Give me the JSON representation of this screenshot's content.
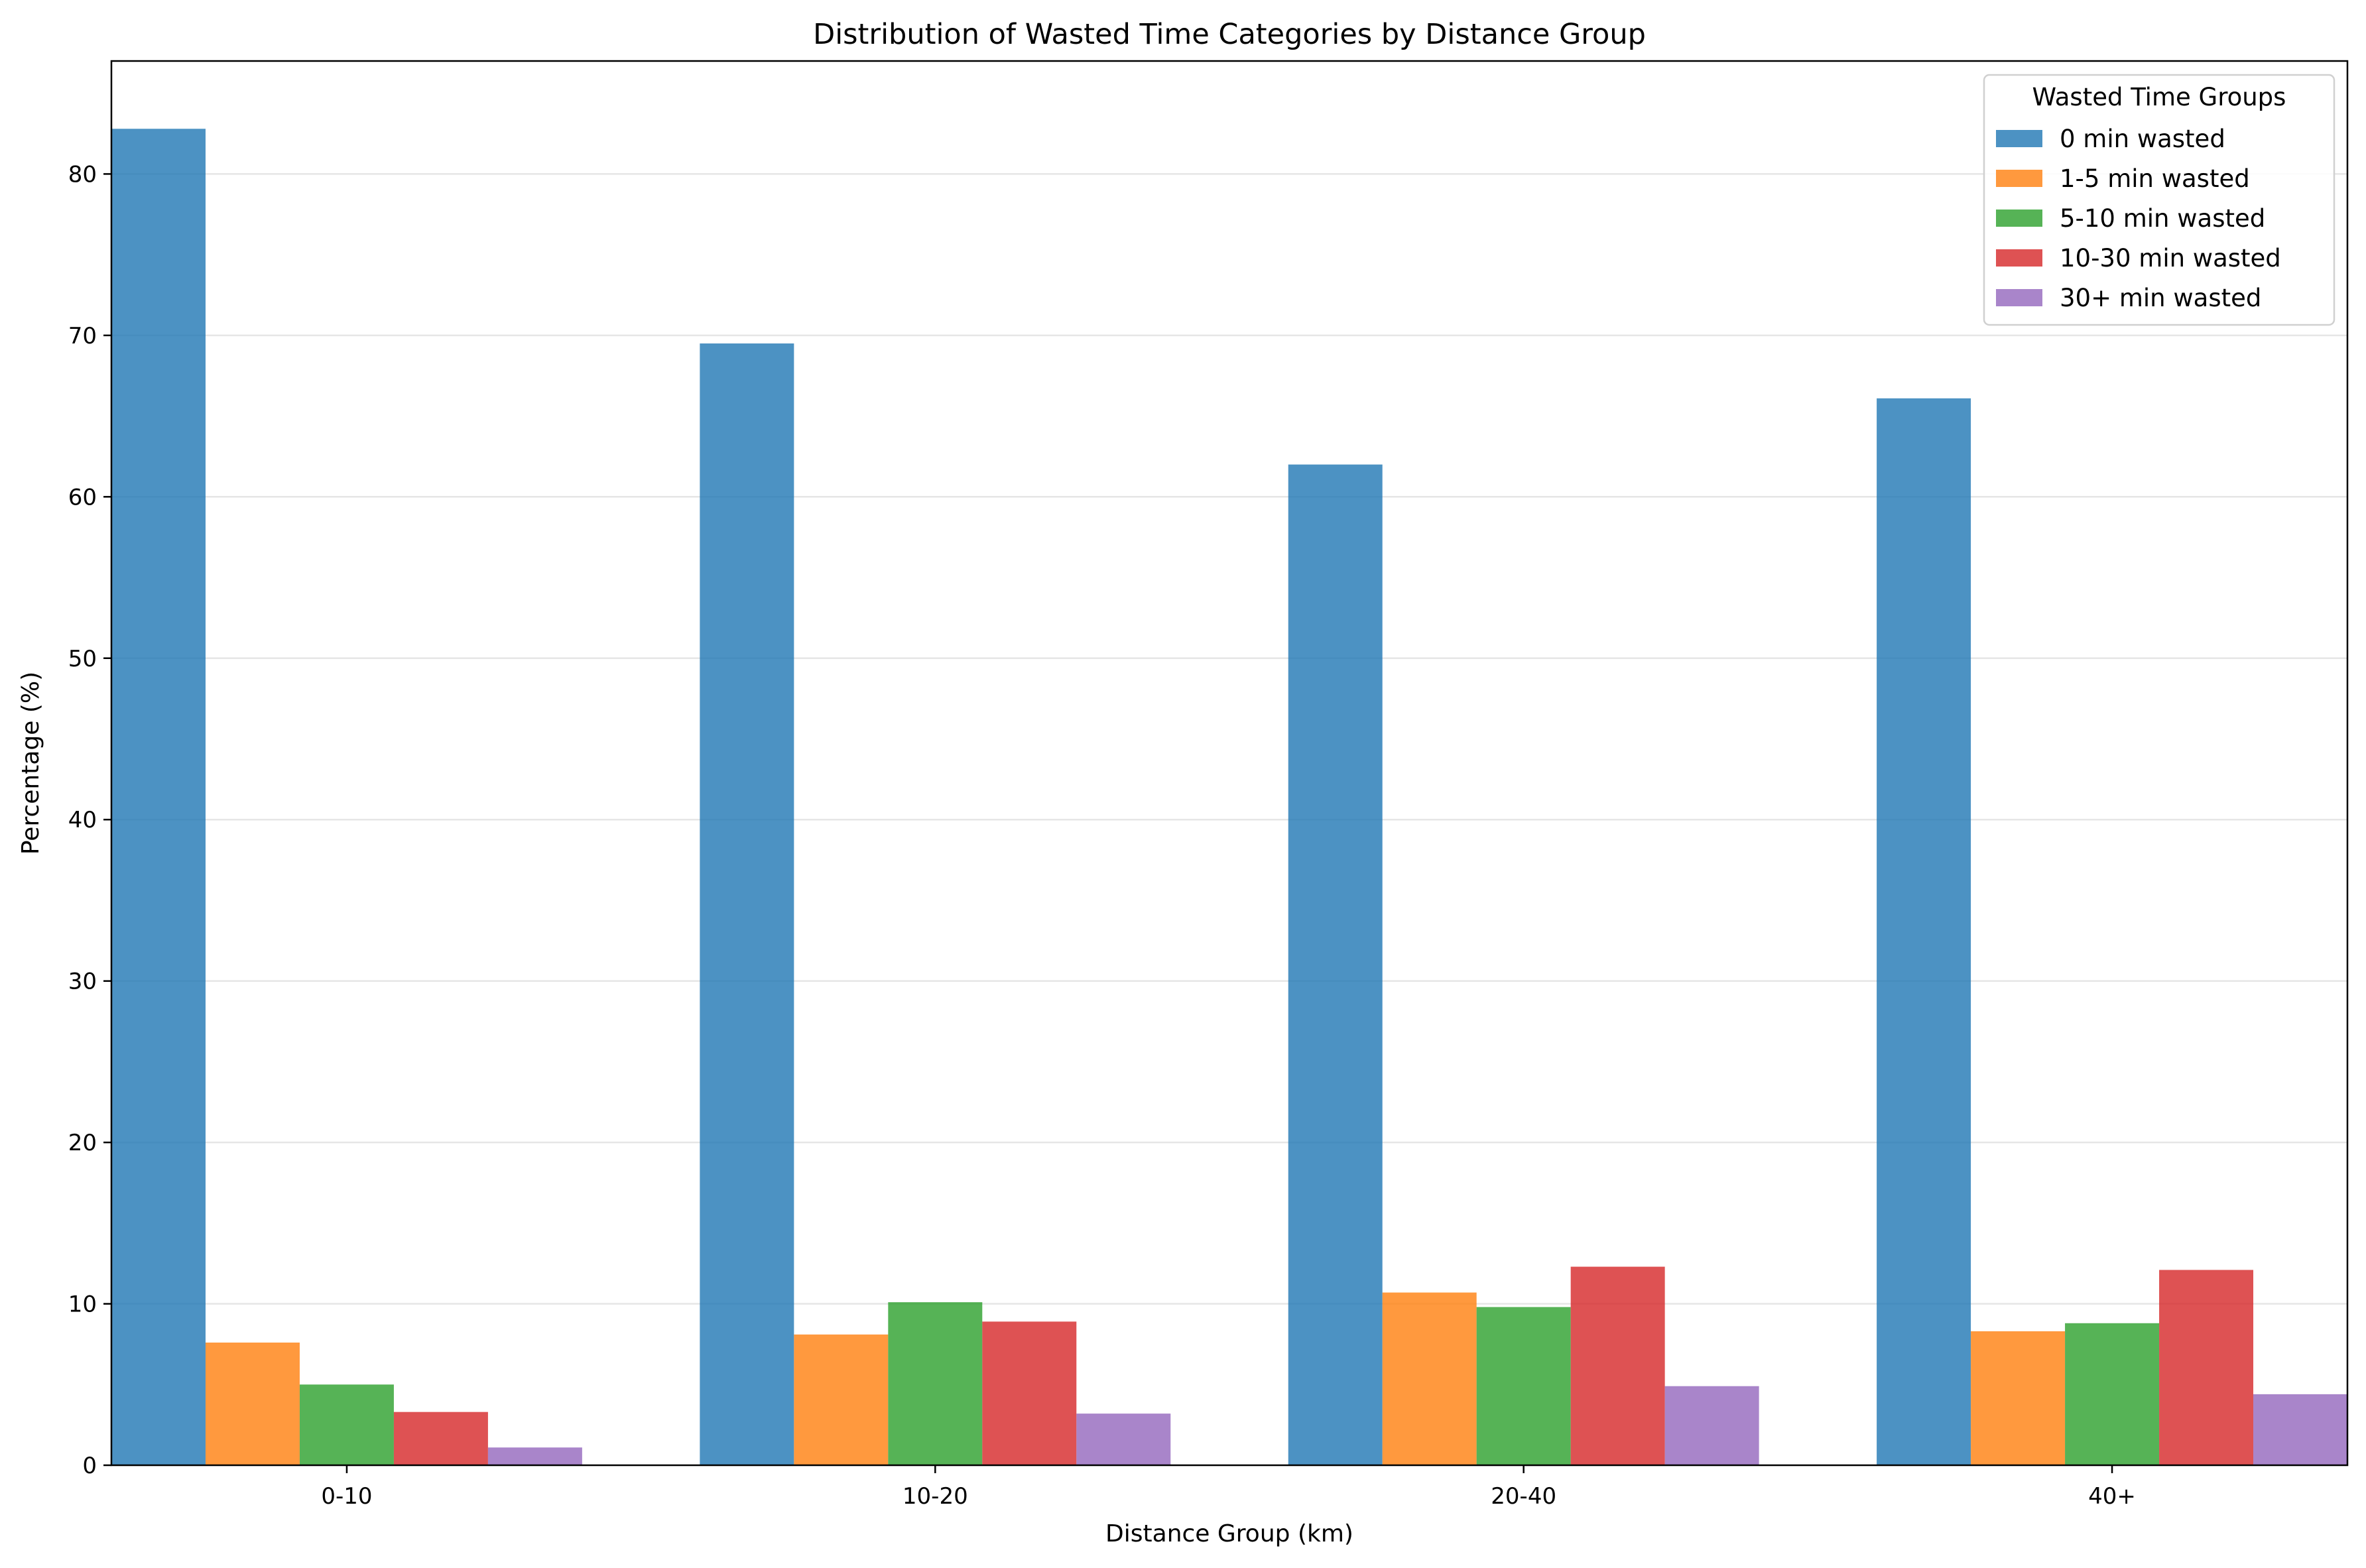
{
  "chart_data": {
    "type": "bar",
    "title": "Distribution of Wasted Time Categories by Distance Group",
    "xlabel": "Distance Group (km)",
    "ylabel": "Percentage (%)",
    "ylim": [
      0,
      87
    ],
    "yticks": [
      "0",
      "10",
      "20",
      "30",
      "40",
      "50",
      "60",
      "70",
      "80"
    ],
    "grid": "horizontal",
    "legend_title": "Wasted Time Groups",
    "legend_position": "top-right",
    "categories": [
      "0-10",
      "10-20",
      "20-40",
      "40+"
    ],
    "series": [
      {
        "name": "0 min wasted",
        "color": "#1f77b4",
        "values": [
          82.8,
          69.5,
          62.0,
          66.1
        ]
      },
      {
        "name": "1-5 min wasted",
        "color": "#ff7f0e",
        "values": [
          7.6,
          8.1,
          10.7,
          8.3
        ]
      },
      {
        "name": "5-10 min wasted",
        "color": "#2ca02c",
        "values": [
          5.0,
          10.1,
          9.8,
          8.8
        ]
      },
      {
        "name": "10-30 min wasted",
        "color": "#d62728",
        "values": [
          3.3,
          8.9,
          12.3,
          12.1
        ]
      },
      {
        "name": "30+ min wasted",
        "color": "#9467bd",
        "values": [
          1.1,
          3.2,
          4.9,
          4.4
        ]
      }
    ]
  }
}
